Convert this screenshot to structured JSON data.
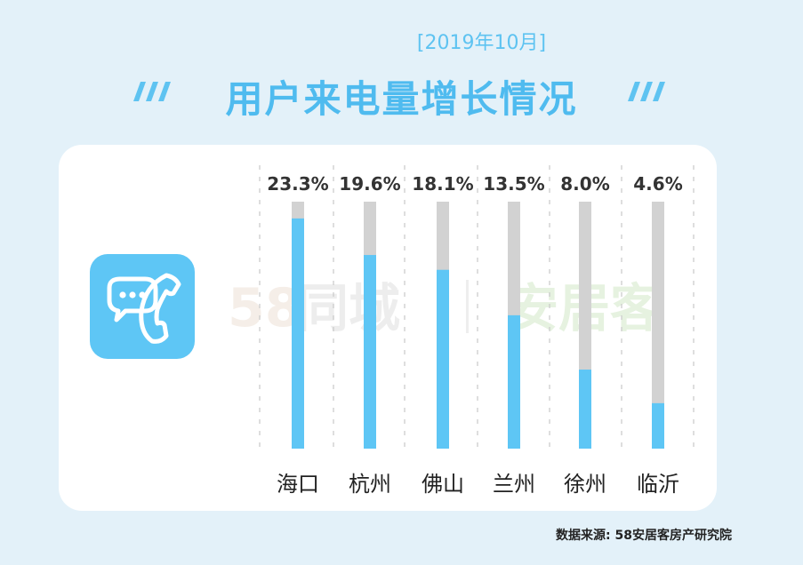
{
  "header": {
    "period": "[2019年10月]",
    "title": "用户来电量增长情况"
  },
  "watermark": {
    "brand_num": "58",
    "brand_name": "同城",
    "brand_sub": "安居客"
  },
  "footer": {
    "source": "数据来源: 58安居客房产研究院"
  },
  "colors": {
    "bar": "#5ec6f5",
    "track": "#d2d2d2",
    "accent": "#4fbbef",
    "background": "#e3f1f9"
  },
  "icons": {
    "app": "phone-chat-icon",
    "decor": "slash-decoration-icon"
  },
  "chart_data": {
    "type": "bar",
    "categories": [
      "海口",
      "杭州",
      "佛山",
      "兰州",
      "徐州",
      "临沂"
    ],
    "values": [
      23.3,
      19.6,
      18.1,
      13.5,
      8.0,
      4.6
    ],
    "value_labels": [
      "23.3%",
      "19.6%",
      "18.1%",
      "13.5%",
      "8.0%",
      "4.6%"
    ],
    "ylim": [
      0,
      25
    ],
    "grid": true,
    "legend": "none"
  }
}
